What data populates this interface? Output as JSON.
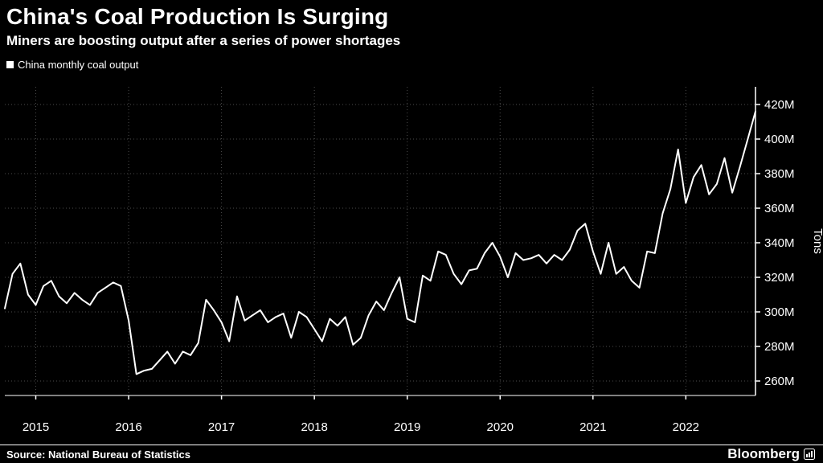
{
  "chart_data": {
    "type": "line",
    "title": "China's Coal Production Is Surging",
    "subtitle": "Miners are boosting output after a series of power shortages",
    "legend": [
      "China monthly coal output"
    ],
    "legend_position": "top-left",
    "ylabel": "Tons",
    "ylim": [
      250,
      430
    ],
    "grid": true,
    "x_frequency": "monthly",
    "x_range": [
      "2014-09",
      "2022-10"
    ],
    "x_tick_labels": [
      "2015",
      "2016",
      "2017",
      "2018",
      "2019",
      "2020",
      "2021",
      "2022"
    ],
    "x_tick_indices": [
      4,
      16,
      28,
      40,
      52,
      64,
      76,
      88
    ],
    "y_ticks": [
      260,
      280,
      300,
      320,
      340,
      360,
      380,
      400,
      420
    ],
    "y_tick_labels": [
      "260M",
      "280M",
      "300M",
      "320M",
      "340M",
      "360M",
      "380M",
      "400M",
      "420M"
    ],
    "series": [
      {
        "name": "China monthly coal output",
        "color": "#ffffff",
        "values": [
          302,
          322,
          328,
          310,
          304,
          315,
          318,
          309,
          305,
          311,
          307,
          304,
          311,
          314,
          317,
          315,
          295,
          264,
          266,
          267,
          272,
          277,
          270,
          277,
          275,
          282,
          307,
          301,
          294,
          283,
          309,
          295,
          298,
          301,
          294,
          297,
          299,
          285,
          300,
          297,
          290,
          283,
          296,
          292,
          297,
          281,
          285,
          298,
          306,
          301,
          311,
          320,
          296,
          294,
          321,
          318,
          335,
          333,
          322,
          316,
          324,
          325,
          334,
          340,
          332,
          320,
          334,
          330,
          331,
          333,
          328,
          333,
          330,
          336,
          347,
          351,
          335,
          322,
          340,
          322,
          326,
          318,
          314,
          335,
          334,
          357,
          371,
          394,
          363,
          378,
          385,
          368,
          374,
          389,
          369,
          384,
          400,
          416
        ]
      }
    ],
    "colors": {
      "background": "#000000",
      "line": "#ffffff",
      "grid": "#4d4d4d",
      "axis": "#ffffff",
      "text": "#ffffff"
    }
  },
  "footer": {
    "source": "Source: National Bureau of Statistics",
    "brand": "Bloomberg"
  }
}
